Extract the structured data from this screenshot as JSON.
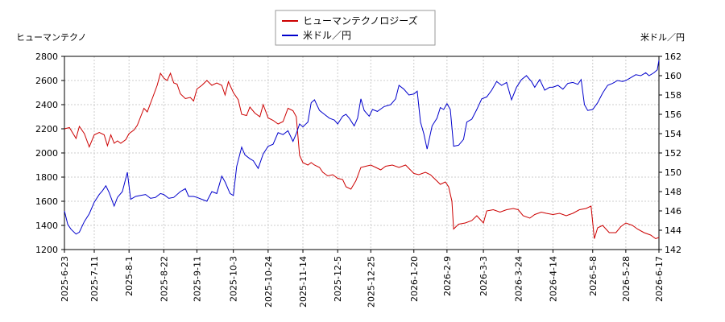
{
  "chart_data": {
    "type": "line",
    "grid": true,
    "legend_placement": "top-center",
    "left_axis_title": "ヒューマンテクノ",
    "right_axis_title": "米ドル／円",
    "left_ylim": [
      1200,
      2800
    ],
    "left_yticks": [
      1200,
      1400,
      1600,
      1800,
      2000,
      2200,
      2400,
      2600,
      2800
    ],
    "right_ylim": [
      142,
      162
    ],
    "right_yticks": [
      142,
      144,
      146,
      148,
      150,
      152,
      154,
      156,
      158,
      160,
      162
    ],
    "x_range": [
      "2025-6-23",
      "2026-6-17"
    ],
    "x_ticks": [
      "2025-6-23",
      "2025-7-11",
      "2025-8-1",
      "2025-8-22",
      "2025-9-11",
      "2025-10-3",
      "2025-10-24",
      "2025-11-14",
      "2025-12-5",
      "2025-12-25",
      "2026-1-20",
      "2026-2-9",
      "2026-3-3",
      "2026-3-24",
      "2026-4-14",
      "2026-5-8",
      "2026-5-28",
      "2026-6-17"
    ],
    "series": [
      {
        "name": "ヒューマンテクノロジーズ",
        "axis": "left",
        "color": "#cc0000",
        "points": [
          [
            "2025-6-23",
            2200
          ],
          [
            "2025-6-26",
            2210
          ],
          [
            "2025-6-30",
            2120
          ],
          [
            "2025-7-2",
            2220
          ],
          [
            "2025-7-5",
            2160
          ],
          [
            "2025-7-8",
            2050
          ],
          [
            "2025-7-11",
            2150
          ],
          [
            "2025-7-14",
            2170
          ],
          [
            "2025-7-17",
            2150
          ],
          [
            "2025-7-19",
            2060
          ],
          [
            "2025-7-21",
            2150
          ],
          [
            "2025-7-23",
            2080
          ],
          [
            "2025-7-25",
            2100
          ],
          [
            "2025-7-27",
            2080
          ],
          [
            "2025-7-30",
            2110
          ],
          [
            "2025-8-1",
            2160
          ],
          [
            "2025-8-4",
            2190
          ],
          [
            "2025-8-6",
            2230
          ],
          [
            "2025-8-8",
            2300
          ],
          [
            "2025-8-10",
            2370
          ],
          [
            "2025-8-12",
            2340
          ],
          [
            "2025-8-15",
            2450
          ],
          [
            "2025-8-18",
            2560
          ],
          [
            "2025-8-20",
            2660
          ],
          [
            "2025-8-22",
            2620
          ],
          [
            "2025-8-24",
            2600
          ],
          [
            "2025-8-26",
            2660
          ],
          [
            "2025-8-28",
            2580
          ],
          [
            "2025-8-30",
            2570
          ],
          [
            "2025-9-1",
            2490
          ],
          [
            "2025-9-4",
            2450
          ],
          [
            "2025-9-7",
            2460
          ],
          [
            "2025-9-9",
            2430
          ],
          [
            "2025-9-11",
            2530
          ],
          [
            "2025-9-14",
            2560
          ],
          [
            "2025-9-17",
            2600
          ],
          [
            "2025-9-20",
            2560
          ],
          [
            "2025-9-23",
            2580
          ],
          [
            "2025-9-26",
            2560
          ],
          [
            "2025-9-28",
            2480
          ],
          [
            "2025-9-30",
            2590
          ],
          [
            "2025-10-3",
            2500
          ],
          [
            "2025-10-6",
            2440
          ],
          [
            "2025-10-8",
            2320
          ],
          [
            "2025-10-11",
            2310
          ],
          [
            "2025-10-13",
            2380
          ],
          [
            "2025-10-16",
            2330
          ],
          [
            "2025-10-19",
            2300
          ],
          [
            "2025-10-21",
            2400
          ],
          [
            "2025-10-24",
            2290
          ],
          [
            "2025-10-27",
            2270
          ],
          [
            "2025-10-30",
            2240
          ],
          [
            "2025-11-2",
            2260
          ],
          [
            "2025-11-5",
            2370
          ],
          [
            "2025-11-8",
            2350
          ],
          [
            "2025-11-10",
            2300
          ],
          [
            "2025-11-12",
            1980
          ],
          [
            "2025-11-14",
            1920
          ],
          [
            "2025-11-17",
            1900
          ],
          [
            "2025-11-19",
            1920
          ],
          [
            "2025-11-21",
            1900
          ],
          [
            "2025-11-24",
            1880
          ],
          [
            "2025-11-26",
            1840
          ],
          [
            "2025-11-29",
            1810
          ],
          [
            "2025-12-2",
            1820
          ],
          [
            "2025-12-5",
            1790
          ],
          [
            "2025-12-8",
            1780
          ],
          [
            "2025-12-10",
            1720
          ],
          [
            "2025-12-13",
            1700
          ],
          [
            "2025-12-16",
            1770
          ],
          [
            "2025-12-19",
            1880
          ],
          [
            "2025-12-22",
            1890
          ],
          [
            "2025-12-25",
            1900
          ],
          [
            "2025-12-28",
            1880
          ],
          [
            "2025-12-31",
            1860
          ],
          [
            "2026-1-3",
            1890
          ],
          [
            "2026-1-7",
            1900
          ],
          [
            "2026-1-11",
            1880
          ],
          [
            "2026-1-15",
            1900
          ],
          [
            "2026-1-20",
            1830
          ],
          [
            "2026-1-23",
            1820
          ],
          [
            "2026-1-27",
            1840
          ],
          [
            "2026-1-30",
            1820
          ],
          [
            "2026-2-2",
            1780
          ],
          [
            "2026-2-5",
            1740
          ],
          [
            "2026-2-8",
            1760
          ],
          [
            "2026-2-10",
            1720
          ],
          [
            "2026-2-12",
            1600
          ],
          [
            "2026-2-13",
            1370
          ],
          [
            "2026-2-16",
            1410
          ],
          [
            "2026-2-20",
            1420
          ],
          [
            "2026-2-24",
            1440
          ],
          [
            "2026-2-27",
            1480
          ],
          [
            "2026-3-3",
            1420
          ],
          [
            "2026-3-5",
            1520
          ],
          [
            "2026-3-9",
            1530
          ],
          [
            "2026-3-13",
            1510
          ],
          [
            "2026-3-17",
            1530
          ],
          [
            "2026-3-21",
            1540
          ],
          [
            "2026-3-24",
            1530
          ],
          [
            "2026-3-27",
            1480
          ],
          [
            "2026-3-31",
            1460
          ],
          [
            "2026-4-3",
            1490
          ],
          [
            "2026-4-7",
            1510
          ],
          [
            "2026-4-10",
            1500
          ],
          [
            "2026-4-14",
            1490
          ],
          [
            "2026-4-18",
            1500
          ],
          [
            "2026-4-22",
            1480
          ],
          [
            "2026-4-26",
            1500
          ],
          [
            "2026-4-30",
            1530
          ],
          [
            "2026-5-4",
            1540
          ],
          [
            "2026-5-7",
            1560
          ],
          [
            "2026-5-9",
            1290
          ],
          [
            "2026-5-11",
            1380
          ],
          [
            "2026-5-14",
            1400
          ],
          [
            "2026-5-18",
            1340
          ],
          [
            "2026-5-22",
            1340
          ],
          [
            "2026-5-25",
            1390
          ],
          [
            "2026-5-28",
            1420
          ],
          [
            "2026-6-1",
            1400
          ],
          [
            "2026-6-4",
            1370
          ],
          [
            "2026-6-8",
            1340
          ],
          [
            "2026-6-12",
            1320
          ],
          [
            "2026-6-15",
            1290
          ],
          [
            "2026-6-17",
            1300
          ]
        ]
      },
      {
        "name": "米ドル／円",
        "axis": "right",
        "color": "#0000cc",
        "points": [
          [
            "2025-6-23",
            146.0
          ],
          [
            "2025-6-25",
            144.6
          ],
          [
            "2025-6-27",
            144.1
          ],
          [
            "2025-6-30",
            143.6
          ],
          [
            "2025-7-2",
            143.8
          ],
          [
            "2025-7-5",
            144.9
          ],
          [
            "2025-7-8",
            145.7
          ],
          [
            "2025-7-11",
            146.9
          ],
          [
            "2025-7-14",
            147.7
          ],
          [
            "2025-7-16",
            148.1
          ],
          [
            "2025-7-18",
            148.6
          ],
          [
            "2025-7-20",
            147.9
          ],
          [
            "2025-7-23",
            146.5
          ],
          [
            "2025-7-25",
            147.4
          ],
          [
            "2025-7-28",
            148.0
          ],
          [
            "2025-7-31",
            150.0
          ],
          [
            "2025-8-2",
            147.2
          ],
          [
            "2025-8-5",
            147.5
          ],
          [
            "2025-8-8",
            147.6
          ],
          [
            "2025-8-11",
            147.7
          ],
          [
            "2025-8-14",
            147.3
          ],
          [
            "2025-8-17",
            147.4
          ],
          [
            "2025-8-20",
            147.8
          ],
          [
            "2025-8-22",
            147.7
          ],
          [
            "2025-8-25",
            147.3
          ],
          [
            "2025-8-28",
            147.4
          ],
          [
            "2025-9-1",
            148.0
          ],
          [
            "2025-9-4",
            148.3
          ],
          [
            "2025-9-6",
            147.5
          ],
          [
            "2025-9-9",
            147.5
          ],
          [
            "2025-9-11",
            147.4
          ],
          [
            "2025-9-14",
            147.2
          ],
          [
            "2025-9-17",
            147.0
          ],
          [
            "2025-9-20",
            148.0
          ],
          [
            "2025-9-23",
            147.8
          ],
          [
            "2025-9-26",
            149.6
          ],
          [
            "2025-9-28",
            149.0
          ],
          [
            "2025-10-1",
            147.8
          ],
          [
            "2025-10-3",
            147.6
          ],
          [
            "2025-10-5",
            150.6
          ],
          [
            "2025-10-8",
            152.6
          ],
          [
            "2025-10-10",
            151.8
          ],
          [
            "2025-10-13",
            151.4
          ],
          [
            "2025-10-15",
            151.2
          ],
          [
            "2025-10-18",
            150.4
          ],
          [
            "2025-10-21",
            151.9
          ],
          [
            "2025-10-24",
            152.7
          ],
          [
            "2025-10-27",
            152.9
          ],
          [
            "2025-10-30",
            154.1
          ],
          [
            "2025-11-2",
            153.9
          ],
          [
            "2025-11-5",
            154.3
          ],
          [
            "2025-11-8",
            153.2
          ],
          [
            "2025-11-10",
            154.0
          ],
          [
            "2025-11-12",
            155.0
          ],
          [
            "2025-11-14",
            154.7
          ],
          [
            "2025-11-17",
            155.2
          ],
          [
            "2025-11-19",
            157.2
          ],
          [
            "2025-11-21",
            157.5
          ],
          [
            "2025-11-24",
            156.4
          ],
          [
            "2025-11-27",
            156.0
          ],
          [
            "2025-11-30",
            155.6
          ],
          [
            "2025-12-3",
            155.4
          ],
          [
            "2025-12-5",
            155.0
          ],
          [
            "2025-12-8",
            155.8
          ],
          [
            "2025-12-10",
            156.0
          ],
          [
            "2025-12-12",
            155.6
          ],
          [
            "2025-12-15",
            154.8
          ],
          [
            "2025-12-17",
            155.6
          ],
          [
            "2025-12-19",
            157.6
          ],
          [
            "2025-12-21",
            156.4
          ],
          [
            "2025-12-24",
            155.8
          ],
          [
            "2025-12-26",
            156.5
          ],
          [
            "2025-12-29",
            156.3
          ],
          [
            "2026-1-2",
            156.8
          ],
          [
            "2026-1-6",
            157.0
          ],
          [
            "2026-1-9",
            157.6
          ],
          [
            "2026-1-11",
            159.0
          ],
          [
            "2026-1-14",
            158.6
          ],
          [
            "2026-1-17",
            158.0
          ],
          [
            "2026-1-20",
            158.1
          ],
          [
            "2026-1-22",
            158.4
          ],
          [
            "2026-1-24",
            155.2
          ],
          [
            "2026-1-26",
            154.0
          ],
          [
            "2026-1-28",
            152.4
          ],
          [
            "2026-1-31",
            154.8
          ],
          [
            "2026-2-3",
            155.6
          ],
          [
            "2026-2-5",
            156.7
          ],
          [
            "2026-2-7",
            156.5
          ],
          [
            "2026-2-9",
            157.1
          ],
          [
            "2026-2-11",
            156.5
          ],
          [
            "2026-2-13",
            152.7
          ],
          [
            "2026-2-16",
            152.8
          ],
          [
            "2026-2-19",
            153.4
          ],
          [
            "2026-2-21",
            155.2
          ],
          [
            "2026-2-24",
            155.5
          ],
          [
            "2026-2-27",
            156.5
          ],
          [
            "2026-3-2",
            157.6
          ],
          [
            "2026-3-5",
            157.8
          ],
          [
            "2026-3-8",
            158.5
          ],
          [
            "2026-3-11",
            159.4
          ],
          [
            "2026-3-14",
            159.0
          ],
          [
            "2026-3-17",
            159.3
          ],
          [
            "2026-3-20",
            157.5
          ],
          [
            "2026-3-23",
            158.8
          ],
          [
            "2026-3-26",
            159.6
          ],
          [
            "2026-3-29",
            160.0
          ],
          [
            "2026-4-1",
            159.4
          ],
          [
            "2026-4-3",
            158.8
          ],
          [
            "2026-4-6",
            159.6
          ],
          [
            "2026-4-9",
            158.5
          ],
          [
            "2026-4-12",
            158.8
          ],
          [
            "2026-4-14",
            158.8
          ],
          [
            "2026-4-17",
            159.0
          ],
          [
            "2026-4-20",
            158.6
          ],
          [
            "2026-4-23",
            159.2
          ],
          [
            "2026-4-26",
            159.3
          ],
          [
            "2026-4-29",
            159.1
          ],
          [
            "2026-5-1",
            159.6
          ],
          [
            "2026-5-3",
            157.0
          ],
          [
            "2026-5-5",
            156.4
          ],
          [
            "2026-5-8",
            156.5
          ],
          [
            "2026-5-11",
            157.2
          ],
          [
            "2026-5-14",
            158.2
          ],
          [
            "2026-5-17",
            159.0
          ],
          [
            "2026-5-20",
            159.2
          ],
          [
            "2026-5-23",
            159.5
          ],
          [
            "2026-5-26",
            159.4
          ],
          [
            "2026-5-28",
            159.5
          ],
          [
            "2026-5-31",
            159.8
          ],
          [
            "2026-6-3",
            160.1
          ],
          [
            "2026-6-6",
            160.0
          ],
          [
            "2026-6-9",
            160.3
          ],
          [
            "2026-6-11",
            160.0
          ],
          [
            "2026-6-14",
            160.3
          ],
          [
            "2026-6-16",
            160.6
          ],
          [
            "2026-6-17",
            161.6
          ]
        ]
      }
    ]
  }
}
